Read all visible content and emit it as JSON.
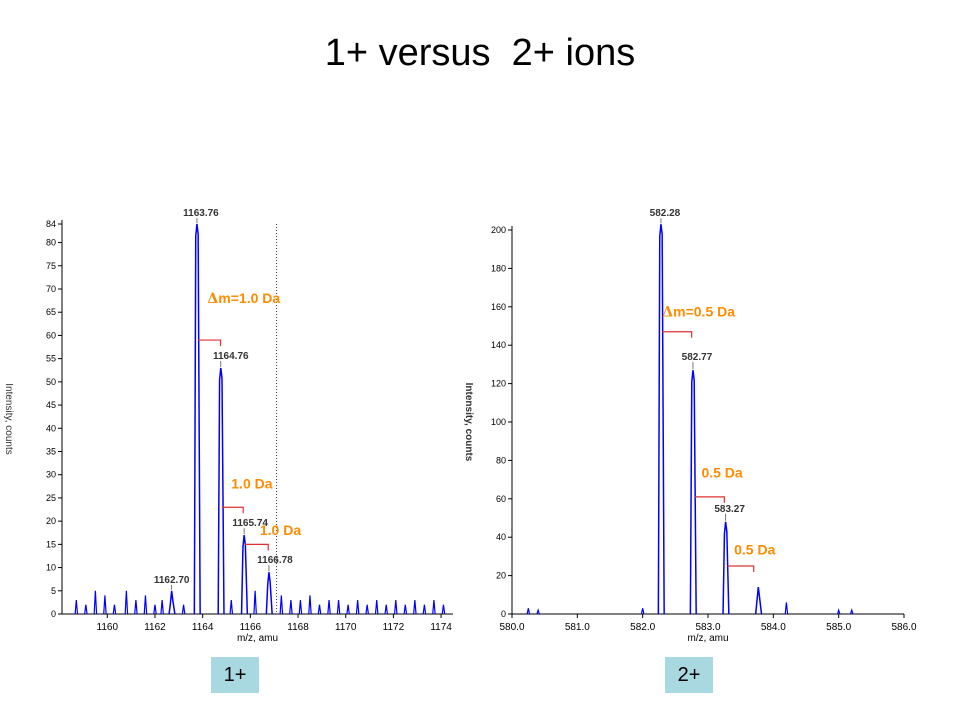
{
  "title": "1+ versus  2+ ions",
  "badges": [
    "1+",
    "2+"
  ],
  "colors": {
    "trace": "#0000ff",
    "annotation": "#ff8c00",
    "bracket": "#e03030",
    "axis": "#000000",
    "badge": "#a8d8e0"
  },
  "chart_data": [
    {
      "type": "line",
      "title": "",
      "xlabel": "m/z, amu",
      "ylabel": "Intensity, counts",
      "xlim": [
        1158.1,
        1174.5
      ],
      "ylim": [
        0,
        84
      ],
      "xticks": [
        1160,
        1162,
        1164,
        1166,
        1168,
        1170,
        1172,
        1174
      ],
      "yticks": [
        0,
        5,
        10,
        15,
        20,
        25,
        30,
        35,
        40,
        45,
        50,
        55,
        60,
        65,
        70,
        75,
        80,
        84
      ],
      "peaks": [
        {
          "x": 1162.7,
          "y": 5,
          "label": "1162.70"
        },
        {
          "x": 1163.76,
          "y": 84,
          "label": "1163.76"
        },
        {
          "x": 1164.76,
          "y": 53,
          "label": "1164.76"
        },
        {
          "x": 1165.74,
          "y": 17,
          "label": "1165.74"
        },
        {
          "x": 1166.78,
          "y": 9,
          "label": "1166.78"
        }
      ],
      "noise": [
        {
          "x": 1158.7,
          "y": 3
        },
        {
          "x": 1159.1,
          "y": 2
        },
        {
          "x": 1159.5,
          "y": 5
        },
        {
          "x": 1159.9,
          "y": 4
        },
        {
          "x": 1160.3,
          "y": 2
        },
        {
          "x": 1160.8,
          "y": 5
        },
        {
          "x": 1161.2,
          "y": 3
        },
        {
          "x": 1161.6,
          "y": 4
        },
        {
          "x": 1162.0,
          "y": 2
        },
        {
          "x": 1162.3,
          "y": 3
        },
        {
          "x": 1163.2,
          "y": 2
        },
        {
          "x": 1165.2,
          "y": 3
        },
        {
          "x": 1166.2,
          "y": 5
        },
        {
          "x": 1167.3,
          "y": 4
        },
        {
          "x": 1167.7,
          "y": 3
        },
        {
          "x": 1168.1,
          "y": 3
        },
        {
          "x": 1168.5,
          "y": 4
        },
        {
          "x": 1168.9,
          "y": 2
        },
        {
          "x": 1169.3,
          "y": 3
        },
        {
          "x": 1169.7,
          "y": 3
        },
        {
          "x": 1170.1,
          "y": 2
        },
        {
          "x": 1170.5,
          "y": 3
        },
        {
          "x": 1170.9,
          "y": 2
        },
        {
          "x": 1171.3,
          "y": 3
        },
        {
          "x": 1171.7,
          "y": 2
        },
        {
          "x": 1172.1,
          "y": 3
        },
        {
          "x": 1172.5,
          "y": 2
        },
        {
          "x": 1172.9,
          "y": 3
        },
        {
          "x": 1173.3,
          "y": 2
        },
        {
          "x": 1173.7,
          "y": 3
        },
        {
          "x": 1174.1,
          "y": 2
        }
      ],
      "dotted_line_x": 1167.1,
      "annotations": [
        {
          "text": "Δm=1.0 Da",
          "x": 1164.2,
          "y": 67,
          "prefix": "Δ",
          "body": "m=1.0 Da"
        },
        {
          "text": "1.0 Da",
          "x": 1165.2,
          "y": 27
        },
        {
          "text": "1.0 Da",
          "x": 1166.4,
          "y": 17
        }
      ],
      "brackets": [
        {
          "x1": 1163.8,
          "x2": 1164.75,
          "y": 59
        },
        {
          "x1": 1164.8,
          "x2": 1165.7,
          "y": 23
        },
        {
          "x1": 1165.75,
          "x2": 1166.75,
          "y": 15
        }
      ]
    },
    {
      "type": "line",
      "title": "",
      "xlabel": "m/z, amu",
      "ylabel": "Intensity, counts",
      "xlim": [
        580.0,
        586.0
      ],
      "ylim": [
        0,
        200
      ],
      "xticks": [
        "580.0",
        "581.0",
        "582.0",
        "583.0",
        "584.0",
        "585.0",
        "586.0"
      ],
      "yticks": [
        0,
        20,
        40,
        60,
        80,
        100,
        120,
        140,
        160,
        180,
        200
      ],
      "peaks": [
        {
          "x": 582.28,
          "y": 203,
          "label": "582.28"
        },
        {
          "x": 582.77,
          "y": 127,
          "label": "582.77"
        },
        {
          "x": 583.27,
          "y": 48,
          "label": "583.27"
        },
        {
          "x": 583.77,
          "y": 14,
          "label": ""
        }
      ],
      "noise": [
        {
          "x": 580.25,
          "y": 3
        },
        {
          "x": 580.4,
          "y": 2
        },
        {
          "x": 582.0,
          "y": 3
        },
        {
          "x": 584.2,
          "y": 6
        },
        {
          "x": 585.0,
          "y": 2
        },
        {
          "x": 585.2,
          "y": 2
        }
      ],
      "annotations": [
        {
          "text": "Δm=0.5 Da",
          "x": 582.3,
          "y": 155,
          "prefix": "Δ",
          "body": "m=0.5 Da"
        },
        {
          "text": "0.5 Da",
          "x": 582.9,
          "y": 71
        },
        {
          "text": "0.5 Da",
          "x": 583.4,
          "y": 31
        }
      ],
      "brackets": [
        {
          "x1": 582.3,
          "x2": 582.75,
          "y": 147
        },
        {
          "x1": 582.8,
          "x2": 583.25,
          "y": 61
        },
        {
          "x1": 583.3,
          "x2": 583.7,
          "y": 25
        }
      ]
    }
  ]
}
